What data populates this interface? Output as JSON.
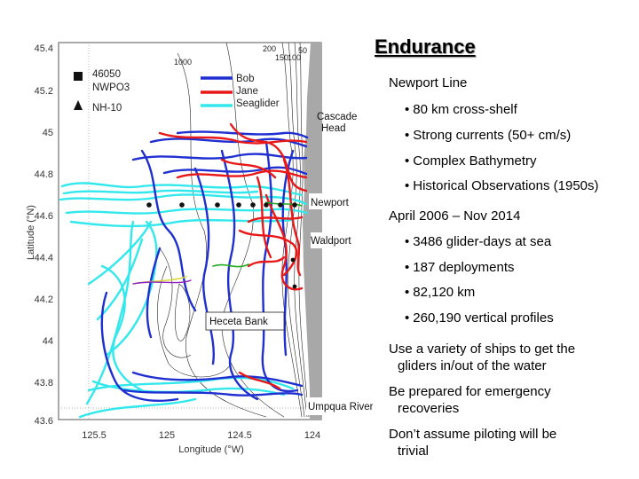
{
  "title": "Endurance",
  "newport_line": {
    "heading": "Newport Line",
    "bullets": [
      "80 km cross-shelf",
      "Strong currents (50+ cm/s)",
      "Complex Bathymetry",
      "Historical Observations (1950s)"
    ]
  },
  "period": {
    "heading": "April 2006 – Nov 2014",
    "bullets": [
      "3486 glider-days at sea",
      "187 deployments",
      "82,120 km",
      "260,190 vertical profiles"
    ]
  },
  "notes": [
    {
      "line1": "Use a variety of ships to get the",
      "line2": "gliders in/out of the water"
    },
    {
      "line1": "Be prepared for  emergency",
      "line2": "recoveries"
    },
    {
      "line1": "Don’t assume piloting will be",
      "line2": "trivial"
    }
  ],
  "map": {
    "ylabel": "Latitude (°N)",
    "xlabel": "Longitude (°W)",
    "yticks": [
      "45.4",
      "45.2",
      "45",
      "44.8",
      "44.6",
      "44.4",
      "44.2",
      "44",
      "43.8",
      "43.6"
    ],
    "xticks": [
      "125.5",
      "125",
      "124.5",
      "124"
    ],
    "contours": [
      "1000",
      "200",
      "150",
      "100",
      "50"
    ],
    "places": [
      "Cascade",
      "Head",
      "Newport",
      "Waldport",
      "Heceta Bank",
      "Umpqua River"
    ],
    "legend_stations": [
      "46050",
      "NWPO3",
      "NH-10"
    ],
    "legend_gliders": [
      {
        "label": "Bob",
        "color": "#1f2fd0"
      },
      {
        "label": "Jane",
        "color": "#e81818"
      },
      {
        "label": "Seaglider",
        "color": "#33e8ec"
      }
    ],
    "land_color": "#a8a8a8"
  }
}
